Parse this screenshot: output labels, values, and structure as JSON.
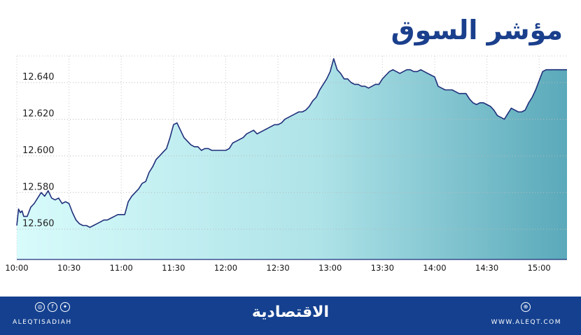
{
  "title": "مؤشر السوق",
  "chart_data": {
    "type": "area",
    "title": "مؤشر السوق",
    "xlabel": "",
    "ylabel": "",
    "x_ticks": [
      "10:00",
      "10:30",
      "11:00",
      "11:30",
      "12:00",
      "12:30",
      "13:00",
      "13:30",
      "14:00",
      "14:30",
      "15:00"
    ],
    "y_ticks": [
      "12.560",
      "12.580",
      "12.600",
      "12.620",
      "12.640"
    ],
    "ylim": [
      12.5435,
      12.6545
    ],
    "grid": true,
    "colors": {
      "line": "#1f2f7a",
      "fill_start": "#d8fbfb",
      "fill_end": "#5aa9ba",
      "grid": "#c8c8c8"
    },
    "series": [
      {
        "x": [
          "10:00",
          "10:01",
          "10:02",
          "10:03",
          "10:04",
          "10:06",
          "10:08",
          "10:10",
          "10:12",
          "10:14",
          "10:16",
          "10:18",
          "10:20",
          "10:22",
          "10:24",
          "10:26",
          "10:28",
          "10:30",
          "10:32",
          "10:34",
          "10:36",
          "10:38",
          "10:40",
          "10:42",
          "10:44",
          "10:46",
          "10:48",
          "10:50",
          "10:52",
          "10:54",
          "10:56",
          "10:58",
          "11:00",
          "11:02",
          "11:04",
          "11:06",
          "11:08",
          "11:10",
          "11:12",
          "11:14",
          "11:16",
          "11:18",
          "11:20",
          "11:22",
          "11:24",
          "11:26",
          "11:28",
          "11:30",
          "11:32",
          "11:34",
          "11:36",
          "11:38",
          "11:40",
          "11:42",
          "11:44",
          "11:46",
          "11:48",
          "11:50",
          "11:52",
          "11:54",
          "11:56",
          "11:58",
          "12:00",
          "12:02",
          "12:04",
          "12:06",
          "12:08",
          "12:10",
          "12:12",
          "12:14",
          "12:16",
          "12:18",
          "12:20",
          "12:22",
          "12:24",
          "12:26",
          "12:28",
          "12:30",
          "12:32",
          "12:34",
          "12:36",
          "12:38",
          "12:40",
          "12:42",
          "12:44",
          "12:46",
          "12:48",
          "12:50",
          "12:52",
          "12:54",
          "12:56",
          "12:58",
          "13:00",
          "13:02",
          "13:04",
          "13:06",
          "13:08",
          "13:10",
          "13:12",
          "13:14",
          "13:16",
          "13:18",
          "13:20",
          "13:22",
          "13:24",
          "13:26",
          "13:28",
          "13:30",
          "13:32",
          "13:34",
          "13:36",
          "13:38",
          "13:40",
          "13:42",
          "13:44",
          "13:46",
          "13:48",
          "13:50",
          "13:52",
          "13:54",
          "13:56",
          "13:58",
          "14:00",
          "14:02",
          "14:04",
          "14:06",
          "14:08",
          "14:10",
          "14:12",
          "14:14",
          "14:16",
          "14:18",
          "14:20",
          "14:22",
          "14:24",
          "14:26",
          "14:28",
          "14:30",
          "14:32",
          "14:34",
          "14:36",
          "14:38",
          "14:40",
          "14:42",
          "14:44",
          "14:46",
          "14:48",
          "14:50",
          "14:52",
          "14:54",
          "14:56",
          "14:58",
          "15:00",
          "15:02",
          "15:04",
          "15:06",
          "15:08",
          "15:10",
          "15:12",
          "15:14",
          "15:16"
        ],
        "values": [
          12.562,
          12.571,
          12.569,
          12.57,
          12.567,
          12.567,
          12.572,
          12.574,
          12.577,
          12.58,
          12.578,
          12.581,
          12.577,
          12.576,
          12.577,
          12.574,
          12.575,
          12.574,
          12.569,
          12.565,
          12.563,
          12.562,
          12.562,
          12.561,
          12.562,
          12.563,
          12.564,
          12.565,
          12.565,
          12.566,
          12.567,
          12.568,
          12.568,
          12.568,
          12.575,
          12.578,
          12.58,
          12.582,
          12.585,
          12.586,
          12.591,
          12.594,
          12.598,
          12.6,
          12.602,
          12.604,
          12.61,
          12.617,
          12.618,
          12.614,
          12.61,
          12.608,
          12.606,
          12.605,
          12.605,
          12.603,
          12.604,
          12.604,
          12.603,
          12.603,
          12.603,
          12.603,
          12.603,
          12.604,
          12.607,
          12.608,
          12.609,
          12.61,
          12.612,
          12.613,
          12.614,
          12.612,
          12.613,
          12.614,
          12.615,
          12.616,
          12.617,
          12.617,
          12.618,
          12.62,
          12.621,
          12.622,
          12.623,
          12.624,
          12.624,
          12.625,
          12.627,
          12.63,
          12.632,
          12.636,
          12.639,
          12.642,
          12.646,
          12.653,
          12.647,
          12.645,
          12.642,
          12.642,
          12.64,
          12.639,
          12.639,
          12.638,
          12.638,
          12.637,
          12.638,
          12.639,
          12.639,
          12.642,
          12.644,
          12.646,
          12.647,
          12.646,
          12.645,
          12.646,
          12.647,
          12.647,
          12.646,
          12.646,
          12.647,
          12.646,
          12.645,
          12.644,
          12.643,
          12.638,
          12.637,
          12.636,
          12.636,
          12.636,
          12.635,
          12.634,
          12.634,
          12.634,
          12.631,
          12.629,
          12.628,
          12.629,
          12.629,
          12.628,
          12.627,
          12.625,
          12.622,
          12.621,
          12.62,
          12.623,
          12.626,
          12.625,
          12.624,
          12.624,
          12.625,
          12.629,
          12.632,
          12.636,
          12.641,
          12.646,
          12.647,
          12.647,
          12.647,
          12.647,
          12.647,
          12.647,
          12.647
        ]
      }
    ]
  },
  "footer": {
    "handle": "ALEQTISADIAH",
    "brand": "الاقتصادية",
    "site": "WWW.ALEQT.COM",
    "icons": [
      "instagram-icon",
      "facebook-icon",
      "twitter-icon",
      "website-icon"
    ]
  }
}
